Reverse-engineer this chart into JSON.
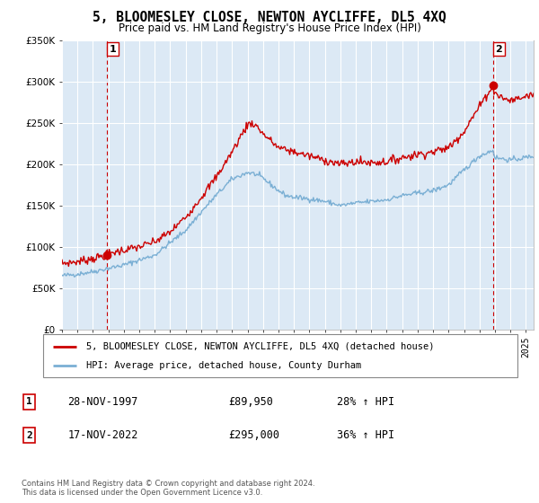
{
  "title": "5, BLOOMESLEY CLOSE, NEWTON AYCLIFFE, DL5 4XQ",
  "subtitle": "Price paid vs. HM Land Registry's House Price Index (HPI)",
  "legend_label_red": "5, BLOOMESLEY CLOSE, NEWTON AYCLIFFE, DL5 4XQ (detached house)",
  "legend_label_blue": "HPI: Average price, detached house, County Durham",
  "transaction1_date": "28-NOV-1997",
  "transaction1_price": "£89,950",
  "transaction1_hpi": "28% ↑ HPI",
  "transaction2_date": "17-NOV-2022",
  "transaction2_price": "£295,000",
  "transaction2_hpi": "36% ↑ HPI",
  "footer": "Contains HM Land Registry data © Crown copyright and database right 2024.\nThis data is licensed under the Open Government Licence v3.0.",
  "ylim": [
    0,
    350000
  ],
  "yticks": [
    0,
    50000,
    100000,
    150000,
    200000,
    250000,
    300000,
    350000
  ],
  "background_color": "#ffffff",
  "plot_bg_color": "#dce9f5",
  "grid_color": "#ffffff",
  "red_line_color": "#cc0000",
  "blue_line_color": "#7aafd4",
  "marker1_x": 1997.9,
  "marker1_y": 89950,
  "marker2_x": 2022.88,
  "marker2_y": 295000,
  "vline1_x": 1997.9,
  "vline2_x": 2022.88,
  "xmin": 1995.0,
  "xmax": 2025.5
}
